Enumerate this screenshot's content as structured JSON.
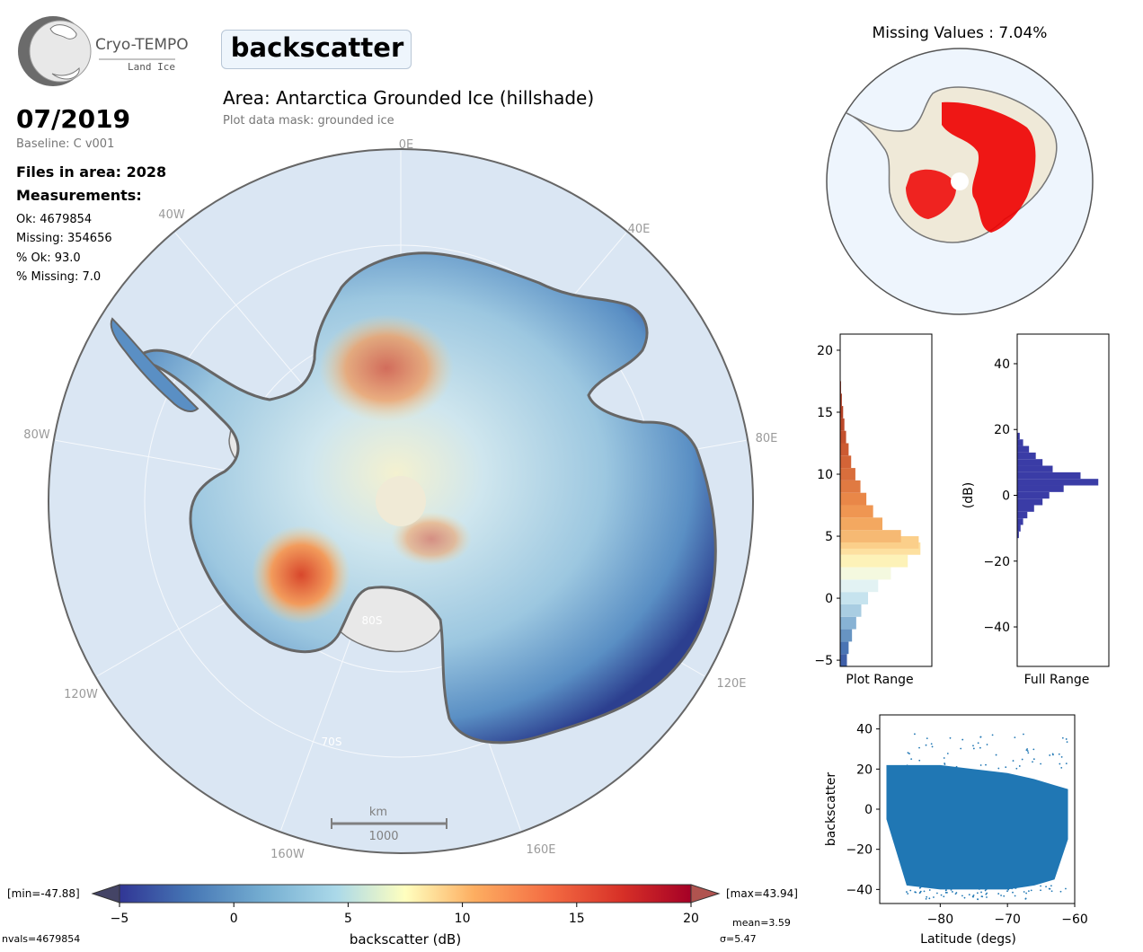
{
  "logo": {
    "name": "Cryo-TEMPO",
    "subtitle": "Land Ice"
  },
  "parameter": "backscatter",
  "area_title": "Area: Antarctica Grounded Ice (hillshade)",
  "mask_text": "Plot data mask: grounded ice",
  "date": "07/2019",
  "baseline": "Baseline: C v001",
  "files_in_area": "Files in area: 2028",
  "measurements_heading": "Measurements:",
  "stats": {
    "ok": "Ok: 4679854",
    "missing": "Missing: 354656",
    "pct_ok": "% Ok: 93.0",
    "pct_missing": "% Missing: 7.0"
  },
  "map": {
    "lon_labels": [
      "0E",
      "40E",
      "80E",
      "120E",
      "160E",
      "160W",
      "120W",
      "80W",
      "40W"
    ],
    "lat_labels": [
      "80S",
      "70S"
    ],
    "scalebar": {
      "unit": "km",
      "value": "1000"
    },
    "colors": {
      "ocean": "#dae6f3",
      "ice_shelf": "#e9e9e9",
      "pole_hole": "#f0ead6"
    }
  },
  "missing_map": {
    "title": "Missing Values : 7.04%",
    "colors": {
      "valid": "#efe9d8",
      "missing": "#ee0000",
      "ocean": "#eef5fd"
    }
  },
  "colorbar": {
    "min_label": "[min=-47.88]",
    "max_label": "[max=43.94]",
    "ticks": [
      "−5",
      "0",
      "5",
      "10",
      "15",
      "20"
    ],
    "label": "backscatter (dB)",
    "mean": "mean=3.59",
    "sigma": "σ=5.47",
    "nvals": "nvals=4679854",
    "range": [
      -5,
      20
    ]
  },
  "chart_data": [
    {
      "type": "bar",
      "orientation": "horizontal",
      "xlabel": "Plot Range",
      "ylim": [
        -5.5,
        21.3
      ],
      "yticks": [
        "−5",
        "0",
        "5",
        "10",
        "15",
        "20"
      ],
      "bins_center": [
        -5,
        -4,
        -3,
        -2,
        -1,
        0,
        1,
        2,
        3,
        4,
        4.5,
        5,
        6,
        7,
        8,
        9,
        10,
        11,
        12,
        13,
        14,
        15,
        16,
        17
      ],
      "values": [
        0.08,
        0.1,
        0.14,
        0.19,
        0.25,
        0.33,
        0.45,
        0.6,
        0.8,
        0.95,
        0.93,
        0.72,
        0.5,
        0.39,
        0.31,
        0.24,
        0.18,
        0.13,
        0.1,
        0.07,
        0.05,
        0.035,
        0.02,
        0.01
      ]
    },
    {
      "type": "bar",
      "orientation": "horizontal",
      "xlabel": "Full Range",
      "ylabel": "(dB)",
      "ylim": [
        -52,
        49
      ],
      "yticks": [
        "40",
        "20",
        "0",
        "−20",
        "−40"
      ],
      "bins_center": [
        -12,
        -10,
        -8,
        -6,
        -4,
        -2,
        0,
        2,
        4,
        6,
        8,
        10,
        12,
        14,
        16,
        18
      ],
      "values": [
        0.02,
        0.04,
        0.07,
        0.12,
        0.2,
        0.3,
        0.38,
        0.55,
        0.96,
        0.75,
        0.42,
        0.3,
        0.22,
        0.14,
        0.07,
        0.03
      ]
    },
    {
      "type": "scatter",
      "xlabel": "Latitude (degs)",
      "ylabel": "backscatter",
      "xlim": [
        -89,
        -60
      ],
      "ylim": [
        -47,
        47
      ],
      "xticks": [
        "−80",
        "−70",
        "−60"
      ],
      "yticks": [
        "40",
        "20",
        "0",
        "−20",
        "−40"
      ],
      "envelope": {
        "x": [
          -88,
          -85,
          -80,
          -75,
          -70,
          -66,
          -63,
          -61
        ],
        "upper": [
          22,
          22,
          22,
          20,
          18,
          15,
          12,
          10
        ],
        "lower": [
          -5,
          -38,
          -40,
          -40,
          -40,
          -38,
          -35,
          -15
        ]
      }
    }
  ]
}
